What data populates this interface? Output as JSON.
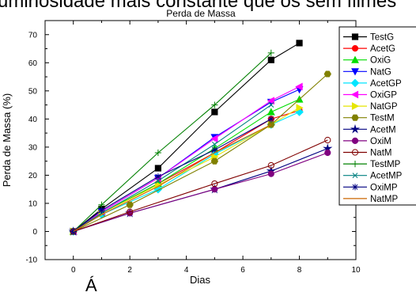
{
  "page_text": {
    "top_caption_fragment": "uminosidade mais constante que os sem filmes",
    "bottom_caption_fragment": "Á"
  },
  "chart_data": {
    "type": "line",
    "title": "Perda de Massa",
    "xlabel": "Dias",
    "ylabel": "Perda de Massa (%)",
    "xlim": [
      -1,
      10
    ],
    "ylim": [
      -10,
      75
    ],
    "xticks": [
      0,
      2,
      4,
      6,
      8,
      10
    ],
    "yticks": [
      -10,
      0,
      10,
      20,
      30,
      40,
      50,
      60,
      70
    ],
    "grid": false,
    "legend_position": "right",
    "series": [
      {
        "name": "TestG",
        "color": "#000000",
        "marker": "square",
        "filled": true,
        "x": [
          0,
          1,
          3,
          5,
          7,
          8
        ],
        "y": [
          0,
          8,
          22.5,
          42.5,
          61,
          67
        ]
      },
      {
        "name": "AcetG",
        "color": "#ff0000",
        "marker": "circle",
        "filled": true,
        "x": [
          0,
          1,
          3,
          5,
          7,
          8
        ],
        "y": [
          0,
          6.5,
          17,
          28,
          40,
          43
        ]
      },
      {
        "name": "OxiG",
        "color": "#00dd00",
        "marker": "triangle-up",
        "filled": true,
        "x": [
          0,
          1,
          3,
          5,
          7,
          8
        ],
        "y": [
          0,
          6.5,
          17,
          29.5,
          42.5,
          47
        ]
      },
      {
        "name": "NatG",
        "color": "#0000ff",
        "marker": "triangle-down",
        "filled": true,
        "x": [
          0,
          1,
          3,
          5,
          7,
          8
        ],
        "y": [
          0,
          7,
          19,
          33.5,
          46,
          50.5
        ]
      },
      {
        "name": "AcetGP",
        "color": "#00e5ff",
        "marker": "diamond",
        "filled": true,
        "x": [
          0,
          1,
          3,
          5,
          7,
          8
        ],
        "y": [
          0,
          6,
          15,
          27.5,
          38,
          42.5
        ]
      },
      {
        "name": "OxiGP",
        "color": "#ff00ff",
        "marker": "triangle-left",
        "filled": true,
        "x": [
          0,
          1,
          3,
          5,
          7,
          8
        ],
        "y": [
          0,
          7,
          19,
          33,
          46.5,
          51.5
        ]
      },
      {
        "name": "NatGP",
        "color": "#e6e600",
        "marker": "triangle-right",
        "filled": true,
        "x": [
          0,
          1,
          3,
          5,
          7,
          8
        ],
        "y": [
          0,
          6.5,
          16.5,
          26.5,
          38,
          44
        ]
      },
      {
        "name": "TestM",
        "color": "#808000",
        "marker": "hexagon",
        "filled": true,
        "x": [
          0,
          2,
          5,
          7,
          9
        ],
        "y": [
          0,
          9.5,
          25,
          38,
          56
        ]
      },
      {
        "name": "AcetM",
        "color": "#000080",
        "marker": "star",
        "filled": true,
        "x": [
          0,
          2,
          5,
          7,
          9
        ],
        "y": [
          0,
          6.5,
          15,
          21.5,
          29.5
        ]
      },
      {
        "name": "OxiM",
        "color": "#800080",
        "marker": "circle",
        "filled": true,
        "x": [
          0,
          2,
          5,
          7,
          9
        ],
        "y": [
          0,
          6.5,
          15,
          20.5,
          28
        ]
      },
      {
        "name": "NatM",
        "color": "#800000",
        "marker": "circle",
        "filled": false,
        "x": [
          0,
          2,
          5,
          7,
          9
        ],
        "y": [
          0,
          7,
          17,
          23.5,
          32.5
        ]
      },
      {
        "name": "TestMP",
        "color": "#008000",
        "marker": "plus",
        "filled": false,
        "x": [
          0,
          1,
          3,
          5,
          7
        ],
        "y": [
          0,
          9.5,
          28,
          45,
          63.5
        ]
      },
      {
        "name": "AcetMP",
        "color": "#008080",
        "marker": "x",
        "filled": false,
        "x": [
          0,
          1,
          3,
          5,
          7
        ],
        "y": [
          0,
          6.5,
          18,
          31,
          45
        ]
      },
      {
        "name": "OxiMP",
        "color": "#000080",
        "marker": "asterisk",
        "filled": false,
        "x": [
          0,
          1,
          3,
          5,
          7
        ],
        "y": [
          0,
          7.5,
          19.5,
          29,
          40
        ]
      },
      {
        "name": "NatMP",
        "color": "#cc6600",
        "marker": "none",
        "filled": false,
        "x": [
          0,
          1,
          3,
          5,
          7
        ],
        "y": [
          0,
          6,
          16,
          28,
          38
        ]
      }
    ]
  }
}
